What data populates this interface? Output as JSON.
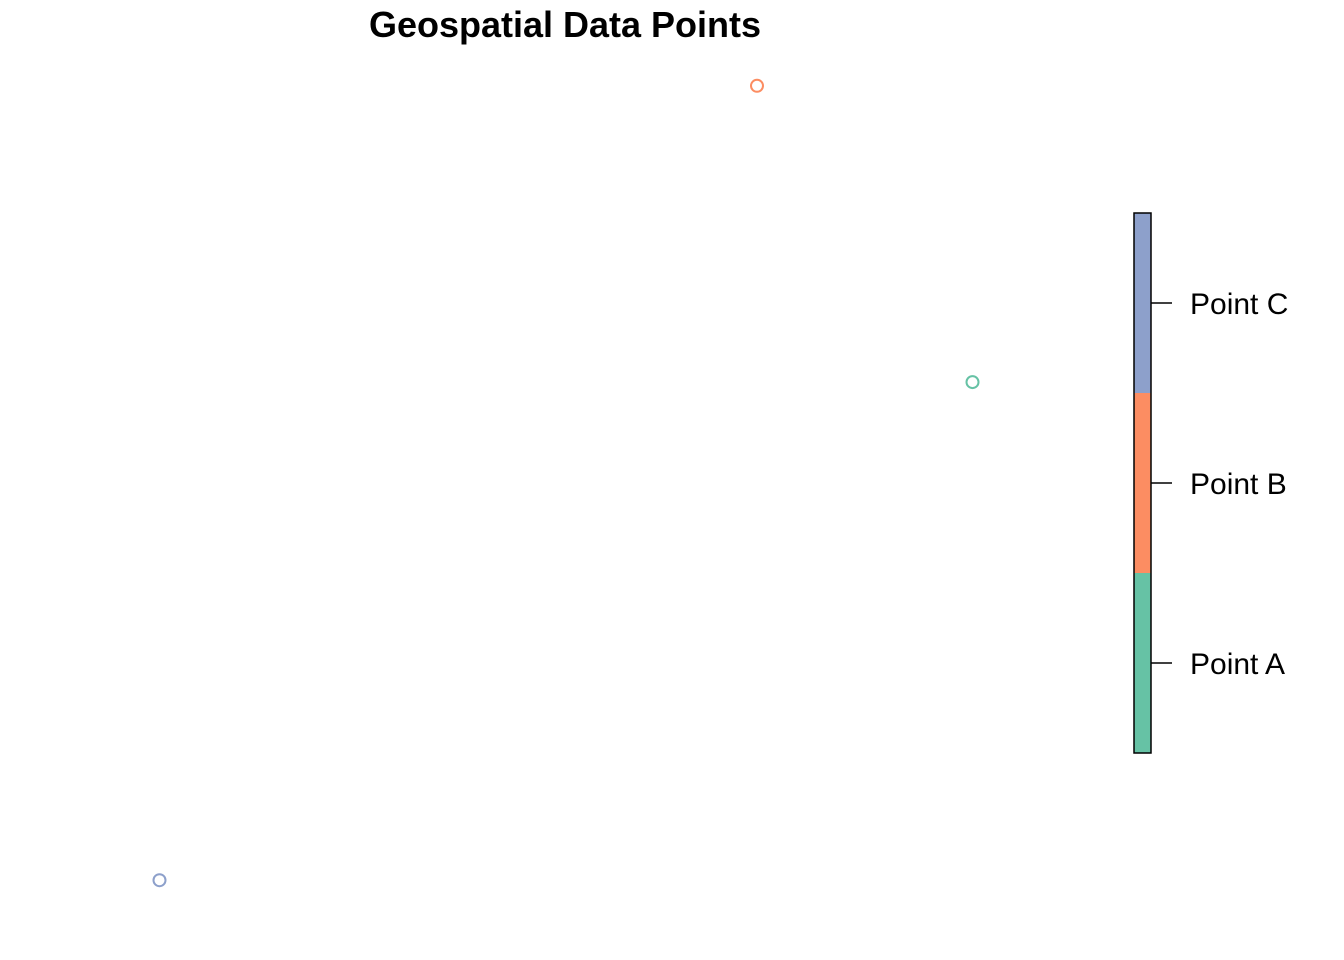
{
  "chart_data": {
    "type": "scatter",
    "title": "Geospatial Data Points",
    "xlabel": "",
    "ylabel": "",
    "axes_visible": false,
    "grid": false,
    "marker": "open-circle",
    "points": [
      {
        "name": "Point A",
        "x": 1.0,
        "y": 0.627,
        "color": "#66C2A5"
      },
      {
        "name": "Point B",
        "x": 0.735,
        "y": 1.0,
        "color": "#FC8D62"
      },
      {
        "name": "Point C",
        "x": 0.0,
        "y": 0.0,
        "color": "#8DA0CB"
      }
    ],
    "xlim": [
      -0.04,
      1.04
    ],
    "ylim": [
      -0.04,
      1.04
    ],
    "legend": {
      "type": "color-bar",
      "placement": "right",
      "entries": [
        "Point A",
        "Point B",
        "Point C"
      ],
      "colors": [
        "#66C2A5",
        "#FC8D62",
        "#8DA0CB"
      ]
    }
  }
}
